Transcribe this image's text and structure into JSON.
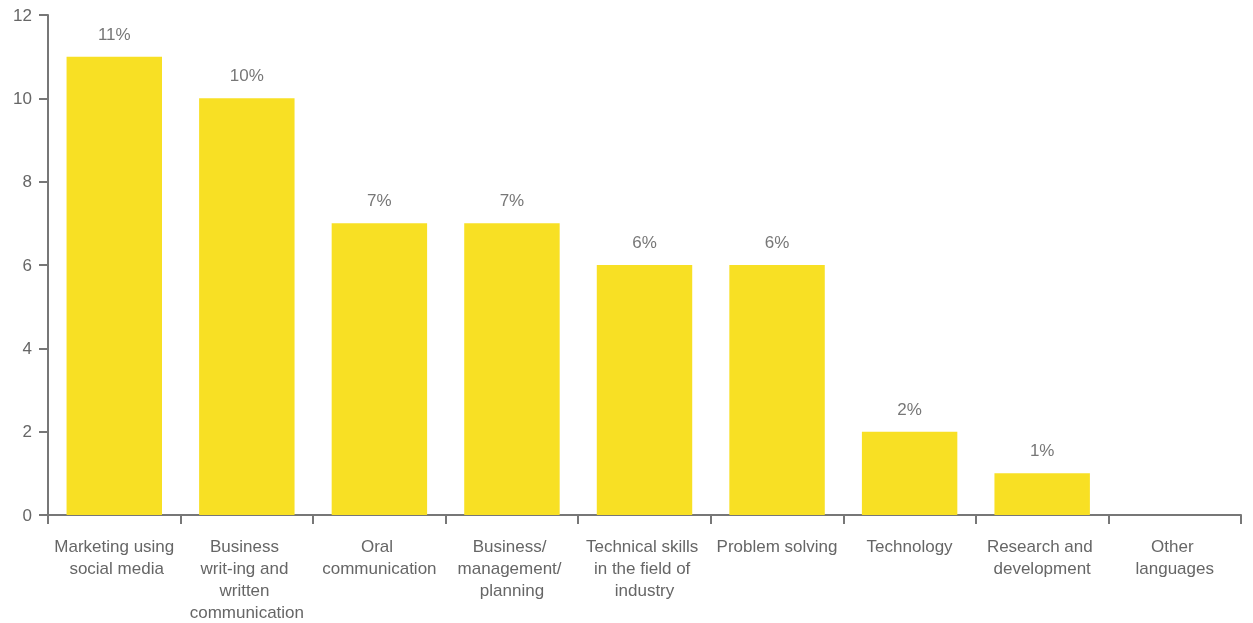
{
  "chart_data": {
    "type": "bar",
    "categories": [
      "Marketing using social media",
      "Business writ-ing and written communication",
      "Oral communication",
      "Business/ management/ planning",
      "Technical skills in the field of industry",
      "Problem solving",
      "Technology",
      "Research and development",
      "Other languages"
    ],
    "values": [
      11,
      10,
      7,
      7,
      6,
      6,
      2,
      1,
      0
    ],
    "value_labels": [
      "11%",
      "10%",
      "7%",
      "7%",
      "6%",
      "6%",
      "2%",
      "1%",
      null
    ],
    "color": "#f8e024",
    "ylim": [
      0,
      12
    ],
    "yticks": [
      0,
      2,
      4,
      6,
      8,
      10,
      12
    ],
    "grid": false
  }
}
